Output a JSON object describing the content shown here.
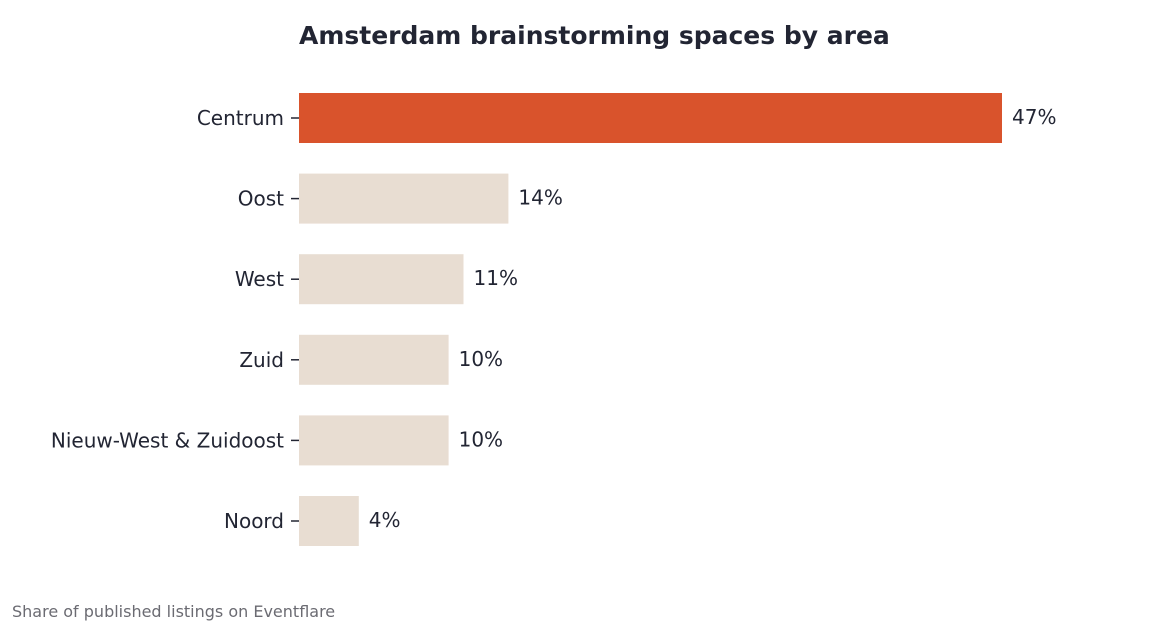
{
  "colors": {
    "highlight": "#d9532c",
    "base": "#e8ddd2",
    "text": "#222533",
    "tick": "#222533",
    "footnote": "#6b6b72"
  },
  "footnote": "Share of published listings on Eventflare",
  "chart_data": {
    "type": "bar",
    "orientation": "horizontal",
    "title": "Amsterdam brainstorming spaces by area",
    "xlabel": "",
    "ylabel": "",
    "categories": [
      "Centrum",
      "Oost",
      "West",
      "Zuid",
      "Nieuw-West & Zuidoost",
      "Noord"
    ],
    "values": [
      47,
      14,
      11,
      10,
      10,
      4
    ],
    "value_labels": [
      "47%",
      "14%",
      "11%",
      "10%",
      "10%",
      "4%"
    ],
    "unit": "%",
    "highlight_index": 0,
    "xlim": [
      0,
      47
    ],
    "grid": false,
    "legend": "none"
  }
}
